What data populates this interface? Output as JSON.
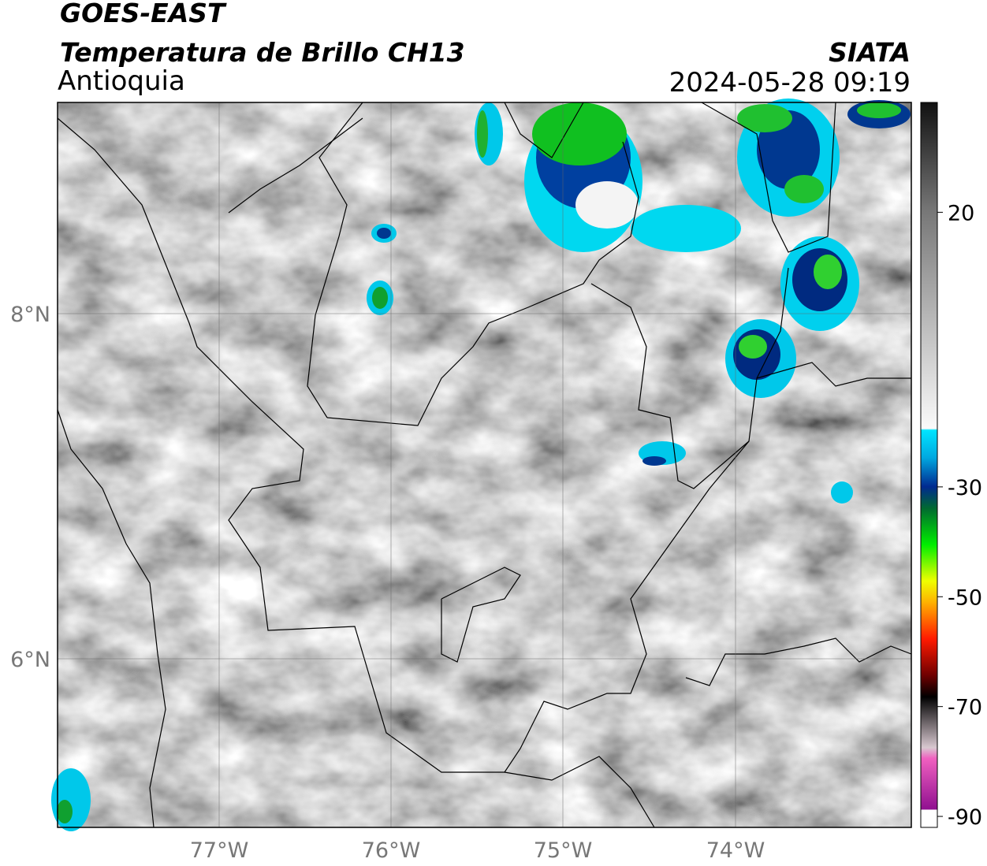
{
  "header": {
    "title": "GOES-EAST",
    "subtitle": "Temperatura de Brillo CH13",
    "region": "Antioquia",
    "source": "SIATA",
    "timestamp": "2024-05-28 09:19"
  },
  "map": {
    "lat_labels": [
      "8°N",
      "6°N"
    ],
    "lon_labels": [
      "77°W",
      "76°W",
      "75°W",
      "74°W"
    ]
  },
  "colorbar": {
    "lim": [
      -92,
      40
    ],
    "ticks": [
      20,
      -30,
      -50,
      -70,
      -90
    ]
  }
}
